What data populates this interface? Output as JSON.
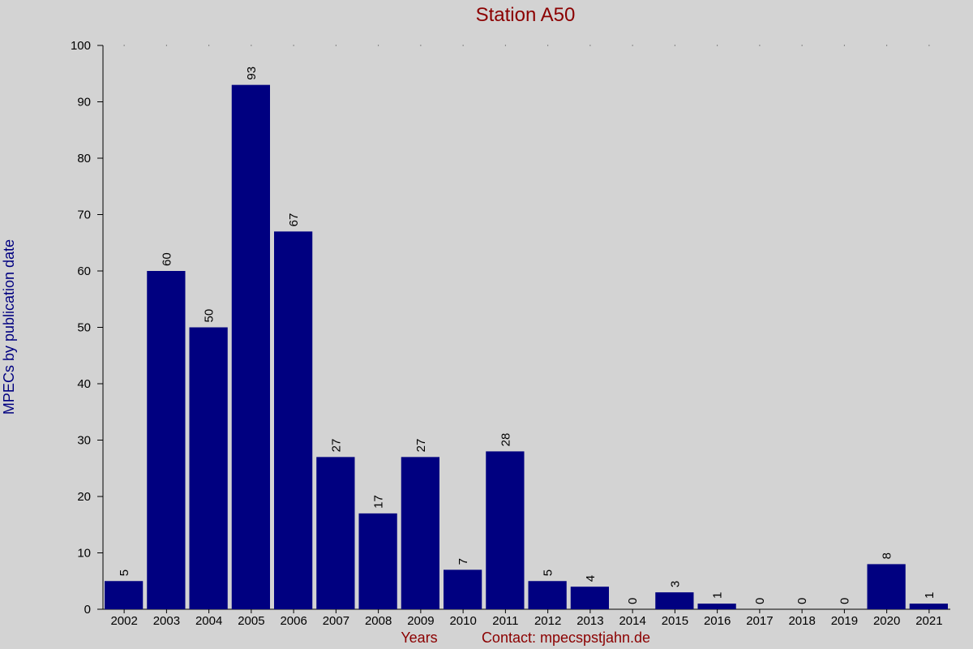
{
  "colors": {
    "background": "#d3d3d3",
    "bar": "#000080",
    "title": "#8b0000",
    "ylabel": "#000080",
    "xlabel": "#8b0000",
    "axis": "#000000"
  },
  "chart_data": {
    "type": "bar",
    "title": "Station A50",
    "xlabel": "Years",
    "ylabel": "MPECs by publication date",
    "contact": "Contact: mpecspstjahn.de",
    "categories": [
      "2002",
      "2003",
      "2004",
      "2005",
      "2006",
      "2007",
      "2008",
      "2009",
      "2010",
      "2011",
      "2012",
      "2013",
      "2014",
      "2015",
      "2016",
      "2017",
      "2018",
      "2019",
      "2020",
      "2021"
    ],
    "values": [
      5,
      60,
      50,
      93,
      67,
      27,
      17,
      27,
      7,
      28,
      5,
      4,
      0,
      3,
      1,
      0,
      0,
      0,
      8,
      1
    ],
    "ylim": [
      0,
      100
    ],
    "yticks": [
      0,
      10,
      20,
      30,
      40,
      50,
      60,
      70,
      80,
      90,
      100
    ],
    "grid": false,
    "data_labels": true,
    "data_label_rotation": "vertical"
  }
}
